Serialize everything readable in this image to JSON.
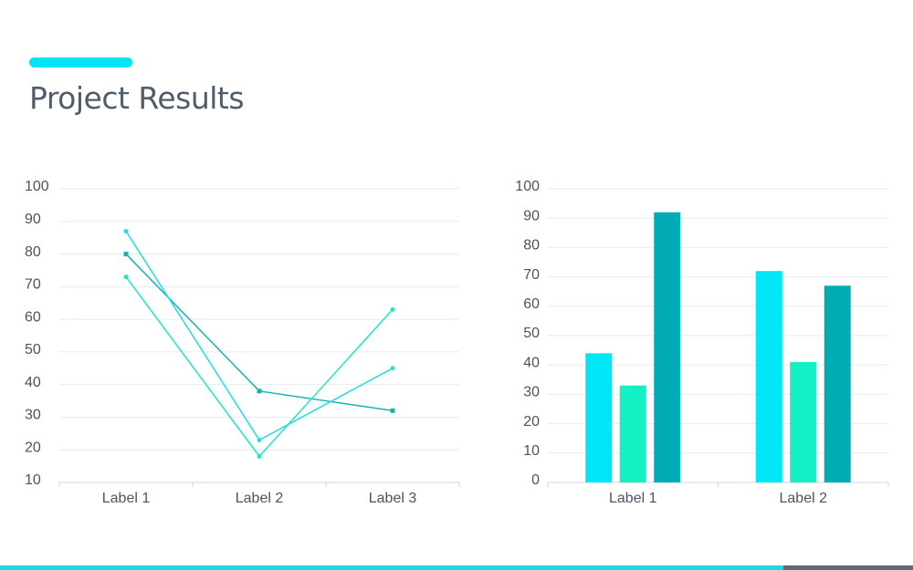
{
  "title": "Project Results",
  "colors": {
    "accent": "#00e5f5",
    "text": "#4f5d6b",
    "footer_main": "#1fd6e6",
    "footer_end": "#5f6b78"
  },
  "chart_data": [
    {
      "type": "line",
      "categories": [
        "Label 1",
        "Label 2",
        "Label 3"
      ],
      "yticks": [
        "10",
        "20",
        "30",
        "40",
        "50",
        "60",
        "70",
        "80",
        "90",
        "100"
      ],
      "ylim": [
        10,
        100
      ],
      "grid": true,
      "series": [
        {
          "values": [
            80,
            38,
            32
          ],
          "color": "#14b4b4",
          "marker": "square"
        },
        {
          "values": [
            87,
            23,
            45
          ],
          "color": "#22dde6",
          "marker": "circle"
        },
        {
          "values": [
            73,
            18,
            63
          ],
          "color": "#1de6c6",
          "marker": "circle"
        }
      ]
    },
    {
      "type": "bar",
      "categories": [
        "Label 1",
        "Label 2"
      ],
      "yticks": [
        "0",
        "10",
        "20",
        "30",
        "40",
        "50",
        "60",
        "70",
        "80",
        "90",
        "100"
      ],
      "ylim": [
        0,
        100
      ],
      "grid": true,
      "series": [
        {
          "values": [
            44,
            72
          ],
          "color": "#00e8f8"
        },
        {
          "values": [
            33,
            41
          ],
          "color": "#12f0c4"
        },
        {
          "values": [
            92,
            67
          ],
          "color": "#00adb5"
        }
      ]
    }
  ]
}
